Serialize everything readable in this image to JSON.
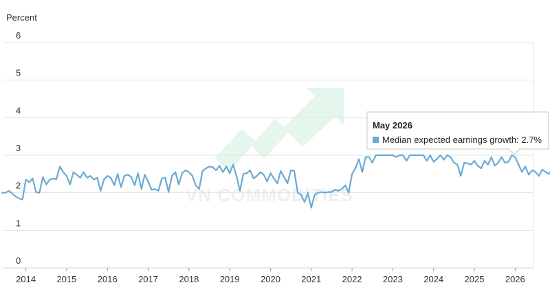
{
  "chart_data": {
    "type": "line",
    "ylabel": "Percent",
    "ylim": [
      0,
      6
    ],
    "yticks": [
      "0",
      "1",
      "2",
      "3",
      "4",
      "5",
      "6"
    ],
    "xlim": [
      2013.45,
      2026.45
    ],
    "xticks": [
      {
        "label": "2014",
        "value": 2014
      },
      {
        "label": "2015",
        "value": 2015
      },
      {
        "label": "2016",
        "value": 2016
      },
      {
        "label": "2017",
        "value": 2017
      },
      {
        "label": "2018",
        "value": 2018
      },
      {
        "label": "2019",
        "value": 2019
      },
      {
        "label": "2020",
        "value": 2020
      },
      {
        "label": "2021",
        "value": 2021
      },
      {
        "label": "2022",
        "value": 2022
      },
      {
        "label": "2023",
        "value": 2023
      },
      {
        "label": "2024",
        "value": 2024
      },
      {
        "label": "2025",
        "value": 2025
      },
      {
        "label": "2026",
        "value": 2026
      }
    ],
    "grid": true,
    "series": [
      {
        "name": "Median expected earnings growth",
        "color": "#6aaad3",
        "start": "2013-06",
        "frequency": "monthly",
        "values": [
          2.0,
          2.0,
          2.05,
          1.98,
          1.9,
          1.85,
          1.82,
          2.35,
          2.28,
          2.38,
          2.02,
          2.0,
          2.42,
          2.22,
          2.35,
          2.38,
          2.36,
          2.7,
          2.55,
          2.45,
          2.22,
          2.55,
          2.48,
          2.4,
          2.55,
          2.4,
          2.45,
          2.35,
          2.4,
          2.05,
          2.35,
          2.45,
          2.4,
          2.2,
          2.5,
          2.15,
          2.45,
          2.48,
          2.42,
          2.2,
          2.52,
          2.1,
          2.48,
          2.3,
          2.08,
          2.1,
          2.05,
          2.38,
          2.4,
          2.02,
          2.45,
          2.55,
          2.22,
          2.52,
          2.6,
          2.55,
          2.45,
          2.2,
          2.1,
          2.58,
          2.65,
          2.7,
          2.68,
          2.6,
          2.72,
          2.55,
          2.7,
          2.52,
          2.75,
          2.45,
          2.05,
          2.5,
          2.52,
          2.6,
          2.38,
          2.45,
          2.55,
          2.48,
          2.3,
          2.52,
          2.38,
          2.25,
          2.58,
          2.42,
          2.25,
          2.6,
          2.58,
          2.0,
          1.95,
          1.75,
          2.0,
          1.6,
          1.95,
          2.0,
          2.02,
          2.0,
          2.02,
          2.02,
          2.08,
          2.05,
          2.1,
          2.2,
          2.0,
          2.5,
          2.65,
          2.9,
          2.55,
          2.95,
          2.95,
          2.8,
          3.0,
          3.0,
          3.0,
          3.0,
          3.0,
          3.0,
          2.95,
          3.0,
          3.0,
          2.85,
          3.0,
          3.0,
          3.0,
          3.0,
          3.0,
          2.85,
          3.0,
          2.82,
          2.9,
          3.0,
          2.88,
          3.0,
          2.95,
          2.8,
          2.75,
          2.45,
          2.8,
          2.78,
          2.75,
          2.85,
          2.72,
          2.65,
          2.85,
          2.75,
          2.95,
          2.72,
          2.8,
          2.95,
          2.8,
          2.82,
          3.0,
          2.95,
          2.75,
          2.55,
          2.7,
          2.48,
          2.6,
          2.55,
          2.45,
          2.62,
          2.55,
          2.5,
          2.65,
          2.45,
          2.4,
          2.7,
          2.6,
          2.38,
          2.7,
          2.7
        ]
      }
    ],
    "tooltip": {
      "title": "May 2026",
      "series_label": "Median expected earnings growth",
      "value_text": "2.7%"
    },
    "watermark": "VN COMMODITIES"
  }
}
